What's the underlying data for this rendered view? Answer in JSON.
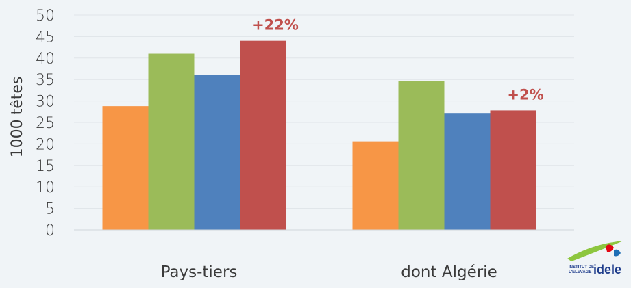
{
  "chart_data": {
    "type": "bar",
    "title": "",
    "xlabel": "",
    "ylabel": "1000 têtes",
    "ylim": [
      0,
      50
    ],
    "yticks": [
      0,
      5,
      10,
      15,
      20,
      25,
      30,
      35,
      40,
      45,
      50
    ],
    "grid": true,
    "legend": "none",
    "categories": [
      "Pays-tiers",
      "dont Algérie"
    ],
    "series": [
      {
        "color": "#f79646",
        "values": [
          28.8,
          20.6
        ]
      },
      {
        "color": "#9bbb59",
        "values": [
          41.0,
          34.7
        ]
      },
      {
        "color": "#4f81bd",
        "values": [
          36.0,
          27.2
        ]
      },
      {
        "color": "#c0504d",
        "values": [
          44.0,
          27.8
        ]
      }
    ],
    "annotations": [
      {
        "category": 0,
        "series": 3,
        "text": "+22%"
      },
      {
        "category": 1,
        "series": 3,
        "text": "+2%"
      }
    ]
  },
  "logo": {
    "line1": "INSTITUT DE",
    "line2": "L'ELEVAGE",
    "brand": "idele"
  }
}
